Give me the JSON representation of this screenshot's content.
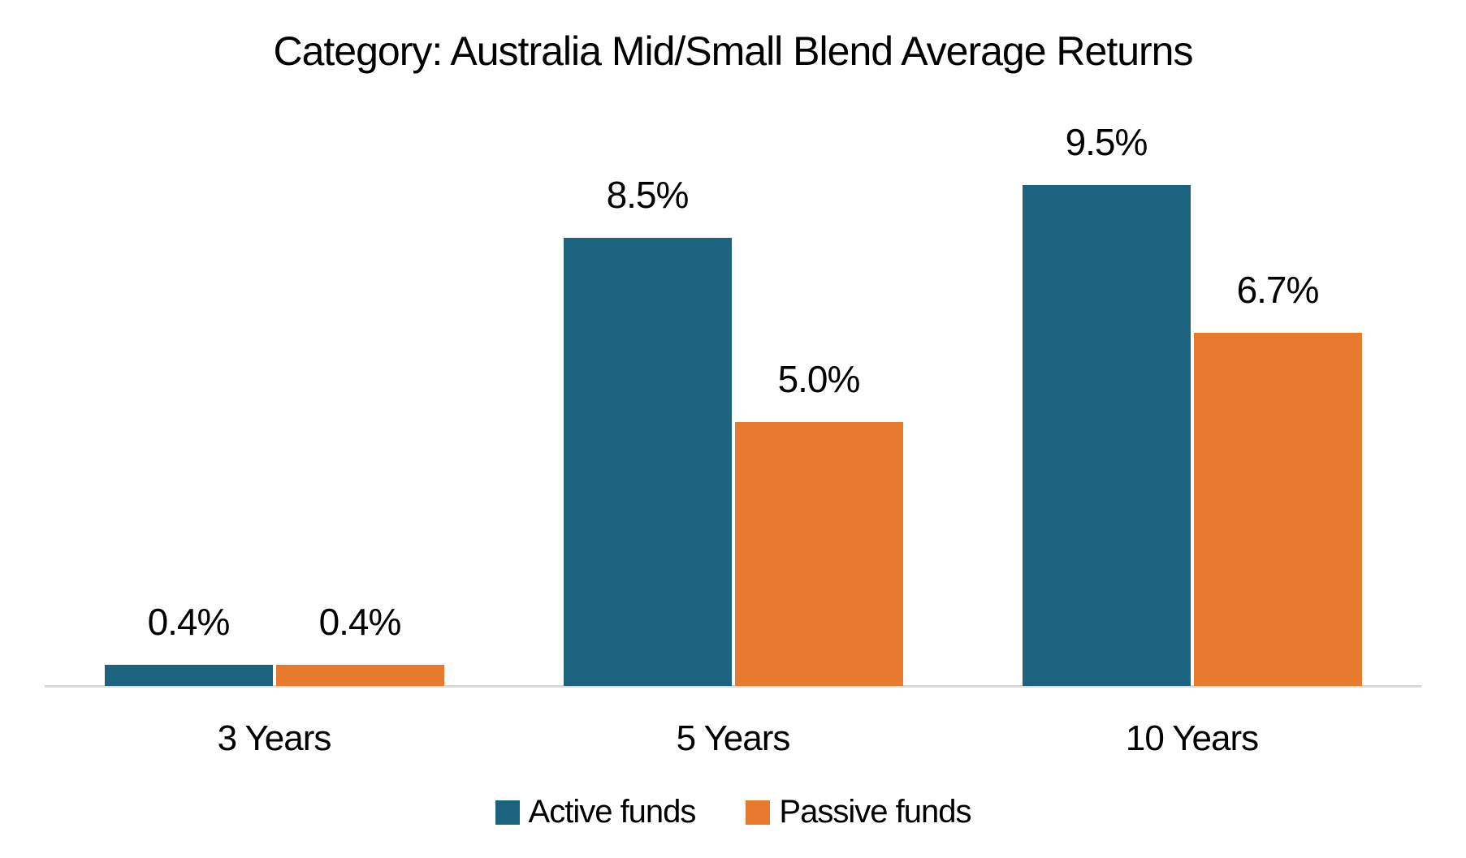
{
  "chart_data": {
    "type": "bar",
    "title": "Category: Australia Mid/Small Blend Average Returns",
    "categories": [
      "3 Years",
      "5 Years",
      "10 Years"
    ],
    "series": [
      {
        "name": "Active funds",
        "color": "#1C6380",
        "values": [
          0.4,
          8.5,
          9.5
        ],
        "labels": [
          "0.4%",
          "8.5%",
          "9.5%"
        ]
      },
      {
        "name": "Passive funds",
        "color": "#E87A2E",
        "values": [
          0.4,
          5.0,
          6.7
        ],
        "labels": [
          "0.4%",
          "5.0%",
          "6.7%"
        ]
      }
    ],
    "xlabel": "",
    "ylabel": "",
    "ylim": [
      0,
      10
    ],
    "grid": false,
    "legend_position": "bottom",
    "axis_line_color": "#D9D9D9",
    "background_color": "#FFFFFF",
    "text_color": "#000000"
  }
}
